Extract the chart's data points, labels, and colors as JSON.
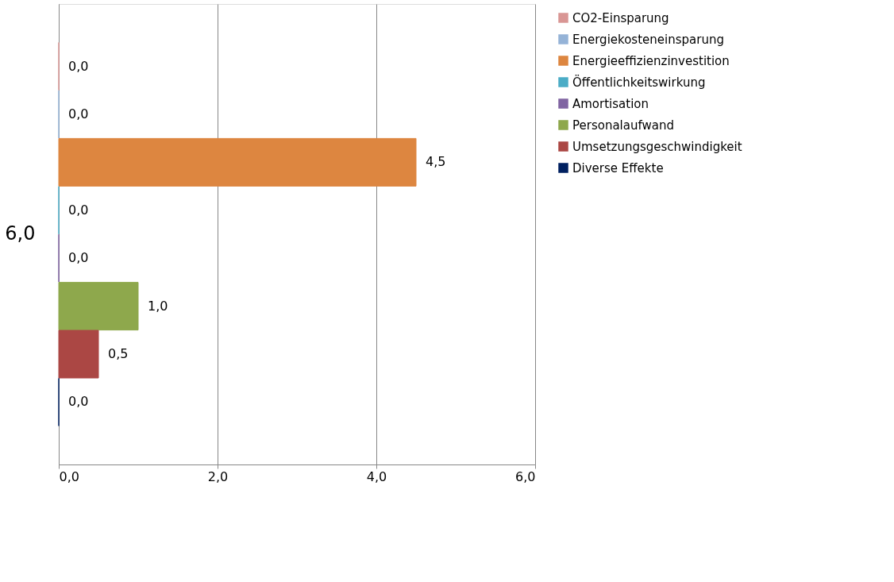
{
  "chart_data": {
    "type": "bar",
    "orientation": "horizontal",
    "categories": [
      "6,0"
    ],
    "series": [
      {
        "name": "CO2-Einsparung",
        "color": "#d99694",
        "values": [
          0.0
        ],
        "value_labels": [
          "0,0"
        ]
      },
      {
        "name": "Energiekosteneinsparung",
        "color": "#95b3d7",
        "values": [
          0.0
        ],
        "value_labels": [
          "0,0"
        ]
      },
      {
        "name": "Energieeffizienzinvestition",
        "color": "#dd8640",
        "values": [
          4.5
        ],
        "value_labels": [
          "4,5"
        ]
      },
      {
        "name": "Öffentlichkeitswirkung",
        "color": "#4bacc6",
        "values": [
          0.0
        ],
        "value_labels": [
          "0,0"
        ]
      },
      {
        "name": "Amortisation",
        "color": "#8064a2",
        "values": [
          0.0
        ],
        "value_labels": [
          "0,0"
        ]
      },
      {
        "name": "Personalaufwand",
        "color": "#8ea84c",
        "values": [
          1.0
        ],
        "value_labels": [
          "1,0"
        ]
      },
      {
        "name": "Umsetzungsgeschwindigkeit",
        "color": "#ab4744",
        "values": [
          0.5
        ],
        "value_labels": [
          "0,5"
        ]
      },
      {
        "name": "Diverse Effekte",
        "color": "#002060",
        "values": [
          0.0
        ],
        "value_labels": [
          "0,0"
        ]
      }
    ],
    "xlim": [
      0,
      6
    ],
    "xticks": [
      {
        "value": 0,
        "label": "0,0"
      },
      {
        "value": 2,
        "label": "2,0"
      },
      {
        "value": 4,
        "label": "4,0"
      },
      {
        "value": 6,
        "label": "6,0"
      }
    ],
    "grid": "x",
    "legend": "right"
  }
}
